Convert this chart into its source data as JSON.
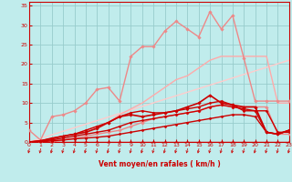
{
  "background_color": "#c0ecec",
  "grid_color": "#98cccc",
  "text_color": "#cc0000",
  "xlabel": "Vent moyen/en rafales ( km/h )",
  "xlim": [
    0,
    23
  ],
  "ylim": [
    0,
    36
  ],
  "yticks": [
    0,
    5,
    10,
    15,
    20,
    25,
    30,
    35
  ],
  "xticks": [
    0,
    1,
    2,
    3,
    4,
    5,
    6,
    7,
    8,
    9,
    10,
    11,
    12,
    13,
    14,
    15,
    16,
    17,
    18,
    19,
    20,
    21,
    22,
    23
  ],
  "lines": [
    {
      "x": [
        0,
        1,
        2,
        3,
        4,
        5,
        6,
        7,
        8,
        9,
        10,
        11,
        12,
        13,
        14,
        15,
        16,
        17,
        18,
        19,
        20,
        21,
        22,
        23
      ],
      "y": [
        0,
        0,
        0,
        0,
        0,
        0,
        0,
        0,
        0,
        0,
        0,
        0,
        0,
        0,
        0,
        0,
        0,
        0,
        0,
        0,
        0,
        0,
        0,
        0
      ],
      "color": "#cc0000",
      "lw": 1.0,
      "marker": "D",
      "ms": 1.5,
      "zorder": 5
    },
    {
      "x": [
        0,
        1,
        2,
        3,
        4,
        5,
        6,
        7,
        8,
        9,
        10,
        11,
        12,
        13,
        14,
        15,
        16,
        17,
        18,
        19,
        20,
        21,
        22,
        23
      ],
      "y": [
        0,
        0,
        0.3,
        0.5,
        0.8,
        1,
        1.2,
        1.5,
        2,
        2.5,
        3,
        3.5,
        4,
        4.5,
        5,
        5.5,
        6,
        6.5,
        7,
        7,
        6.5,
        2.5,
        2,
        3
      ],
      "color": "#cc0000",
      "lw": 1.0,
      "marker": "D",
      "ms": 1.5,
      "zorder": 4
    },
    {
      "x": [
        0,
        1,
        2,
        3,
        4,
        5,
        6,
        7,
        8,
        9,
        10,
        11,
        12,
        13,
        14,
        15,
        16,
        17,
        18,
        19,
        20,
        21,
        22,
        23
      ],
      "y": [
        0,
        0.2,
        0.5,
        1,
        1.5,
        2,
        2.5,
        3,
        4,
        5,
        5.5,
        6,
        6.5,
        7,
        7.5,
        8,
        9,
        9.5,
        9,
        8.5,
        8,
        2.5,
        2,
        3
      ],
      "color": "#cc0000",
      "lw": 1.0,
      "marker": "D",
      "ms": 1.5,
      "zorder": 4
    },
    {
      "x": [
        0,
        1,
        2,
        3,
        4,
        5,
        6,
        7,
        8,
        9,
        10,
        11,
        12,
        13,
        14,
        15,
        16,
        17,
        18,
        19,
        20,
        21,
        22,
        23
      ],
      "y": [
        0,
        0.3,
        0.8,
        1.5,
        2,
        2.5,
        3.5,
        5,
        6.5,
        7,
        6.5,
        7,
        7.5,
        8,
        9,
        10,
        12,
        10,
        9.5,
        9,
        9,
        2.5,
        2,
        3
      ],
      "color": "#cc0000",
      "lw": 1.2,
      "marker": "D",
      "ms": 1.8,
      "zorder": 5
    },
    {
      "x": [
        0,
        1,
        2,
        3,
        4,
        5,
        6,
        7,
        8,
        9,
        10,
        11,
        12,
        13,
        14,
        15,
        16,
        17,
        18,
        19,
        20,
        21,
        22,
        23
      ],
      "y": [
        0,
        0.3,
        1,
        1.5,
        2,
        3,
        4,
        5,
        6.5,
        7.5,
        8,
        7.5,
        7.5,
        8,
        8.5,
        9,
        10,
        10.5,
        9.5,
        8,
        8,
        8,
        2.5,
        2.5
      ],
      "color": "#cc0000",
      "lw": 1.0,
      "marker": "D",
      "ms": 1.5,
      "zorder": 4
    },
    {
      "x": [
        0,
        1,
        2,
        3,
        4,
        5,
        6,
        7,
        8,
        9,
        10,
        11,
        12,
        13,
        14,
        15,
        16,
        17,
        18,
        19,
        20,
        21,
        22,
        23
      ],
      "y": [
        3,
        0.5,
        6.5,
        7,
        8,
        10,
        13.5,
        14,
        10.5,
        22,
        24.5,
        24.5,
        28.5,
        31,
        29,
        27,
        33.5,
        29,
        32.5,
        21.5,
        10.5,
        10.5,
        10.5,
        10.5
      ],
      "color": "#ee8888",
      "lw": 1.0,
      "marker": "D",
      "ms": 1.8,
      "zorder": 3
    },
    {
      "x": [
        0,
        1,
        2,
        3,
        4,
        5,
        6,
        7,
        8,
        9,
        10,
        11,
        12,
        13,
        14,
        15,
        16,
        17,
        18,
        19,
        20,
        21,
        22,
        23
      ],
      "y": [
        0,
        0,
        0,
        0.5,
        1,
        1.5,
        2,
        2.5,
        3,
        4,
        5,
        6,
        6.5,
        7,
        7.5,
        8,
        9,
        9.5,
        9,
        9,
        9,
        9,
        2,
        2
      ],
      "color": "#ee8888",
      "lw": 1.0,
      "marker": "D",
      "ms": 1.8,
      "zorder": 3
    },
    {
      "x": [
        0,
        1,
        2,
        3,
        4,
        5,
        6,
        7,
        8,
        9,
        10,
        11,
        12,
        13,
        14,
        15,
        16,
        17,
        18,
        19,
        20,
        21,
        22,
        23
      ],
      "y": [
        0,
        0.3,
        1,
        1.5,
        2,
        3,
        4,
        5,
        7,
        8.5,
        10,
        12,
        14,
        16,
        17,
        19,
        21,
        22,
        22,
        22,
        22,
        22,
        10,
        10
      ],
      "color": "#ffaaaa",
      "lw": 1.0,
      "marker": null,
      "ms": 0,
      "zorder": 2
    },
    {
      "x": [
        0,
        23
      ],
      "y": [
        0,
        21
      ],
      "color": "#ffcccc",
      "lw": 1.0,
      "marker": null,
      "ms": 0,
      "zorder": 1
    }
  ],
  "arrows_x": [
    0,
    1,
    2,
    3,
    4,
    5,
    6,
    7,
    8,
    9,
    10,
    11,
    12,
    13,
    14,
    15,
    16,
    17,
    18,
    19,
    20,
    21,
    22,
    23
  ]
}
